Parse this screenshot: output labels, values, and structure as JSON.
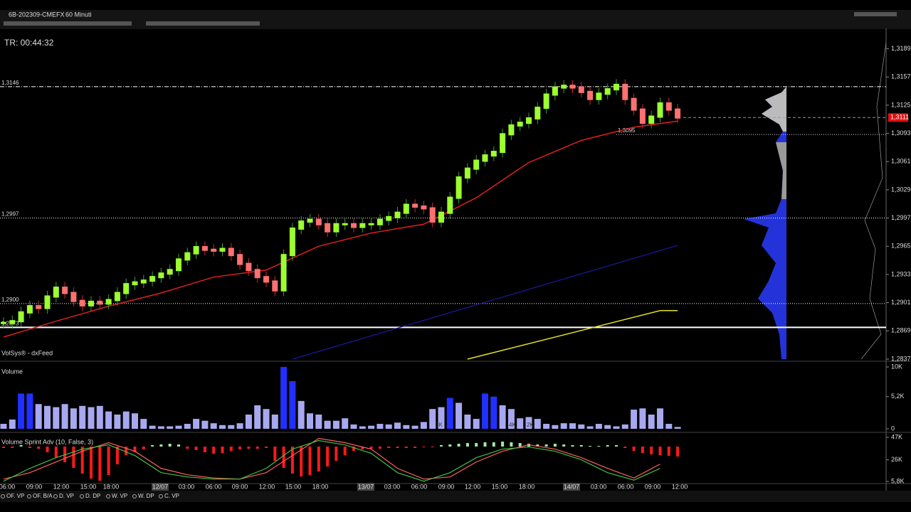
{
  "header": {
    "symbol": "6B-202309-CMEFX",
    "timeframe": "60 Minuti"
  },
  "price_panel": {
    "timer": "TR: 00:44:32",
    "source": "VolSys® - dxFeed",
    "ylim": [
      1.2837,
      1.3212
    ],
    "yticks": [
      {
        "value": 1.3189,
        "label": "1,3189"
      },
      {
        "value": 1.3157,
        "label": "1,3157"
      },
      {
        "value": 1.3125,
        "label": "1,3125"
      },
      {
        "value": 1.3093,
        "label": "1,3093"
      },
      {
        "value": 1.3061,
        "label": "1,3061"
      },
      {
        "value": 1.3029,
        "label": "1,3029"
      },
      {
        "value": 1.2997,
        "label": "1,2997"
      },
      {
        "value": 1.2965,
        "label": "1,2965"
      },
      {
        "value": 1.2933,
        "label": "1,2933"
      },
      {
        "value": 1.2901,
        "label": "1,2901"
      },
      {
        "value": 1.2869,
        "label": "1,2869"
      },
      {
        "value": 1.2837,
        "label": "1,2837"
      }
    ],
    "closes": [
      1.2878,
      1.288,
      1.289,
      1.2897,
      1.2895,
      1.2908,
      1.2918,
      1.2912,
      1.2903,
      1.2898,
      1.2902,
      1.29,
      1.2904,
      1.2912,
      1.2922,
      1.2924,
      1.2926,
      1.293,
      1.2934,
      1.2938,
      1.295,
      1.2957,
      1.2964,
      1.2961,
      1.296,
      1.2962,
      1.2955,
      1.2945,
      1.2938,
      1.293,
      1.2925,
      1.2915,
      1.2955,
      1.2985,
      1.2993,
      1.2995,
      1.299,
      1.2982,
      1.299,
      1.299,
      1.2987,
      1.299,
      1.299,
      1.2995,
      1.2998,
      1.3003,
      1.3012,
      1.301,
      1.3008,
      1.2993,
      1.3003,
      1.302,
      1.3043,
      1.3053,
      1.3062,
      1.3068,
      1.3072,
      1.3092,
      1.3102,
      1.3105,
      1.311,
      1.3122,
      1.3137,
      1.3145,
      1.3147,
      1.3145,
      1.314,
      1.3132,
      1.3138,
      1.3143,
      1.3148,
      1.3132,
      1.312,
      1.3105,
      1.3112,
      1.3127,
      1.312,
      1.3111
    ],
    "up_color": "#9cff2e",
    "down_color": "#ff7070",
    "ma": {
      "color": "#e02020",
      "x": [
        0,
        6,
        12,
        18,
        24,
        30,
        36,
        42,
        48,
        54,
        60,
        66,
        72,
        77
      ],
      "values": [
        1.2862,
        1.288,
        1.2897,
        1.2912,
        1.293,
        1.2938,
        1.2965,
        1.298,
        1.299,
        1.302,
        1.306,
        1.3085,
        1.31,
        1.3107
      ]
    },
    "blue_line": {
      "color": "#1a1aa0",
      "x": [
        33,
        77
      ],
      "values": [
        1.2837,
        1.2966
      ]
    },
    "yellow_line": {
      "color": "#e8e020",
      "x": [
        53,
        75,
        77
      ],
      "values": [
        1.2837,
        1.2892,
        1.2892
      ]
    },
    "levels": [
      {
        "value": 1.3146,
        "label": "1,3146",
        "style": "dashdot"
      },
      {
        "value": 1.2997,
        "label": "1,2997",
        "style": "dotted"
      },
      {
        "value": 1.29,
        "label": "1,2900",
        "style": "dotted"
      },
      {
        "value": 1.2873,
        "label": "1,2873",
        "style": "solid"
      }
    ],
    "low_level": {
      "value": 1.3095,
      "label": "1,3095"
    },
    "current": {
      "value": 1.3111,
      "label": "1,3111"
    }
  },
  "volume_panel": {
    "title": "Volume",
    "ylim": [
      0,
      10000
    ],
    "yticks": [
      {
        "value": 10000,
        "label": "10K"
      },
      {
        "value": 5200,
        "label": "5,2K"
      },
      0
    ],
    "values": [
      800,
      1500,
      5700,
      5700,
      4000,
      3700,
      3500,
      4000,
      3300,
      3700,
      3500,
      3700,
      2800,
      2300,
      2800,
      2500,
      1600,
      500,
      400,
      400,
      500,
      800,
      1600,
      1300,
      900,
      600,
      600,
      900,
      2300,
      3800,
      3200,
      2300,
      10000,
      7700,
      4500,
      2500,
      2300,
      1300,
      1300,
      1700,
      700,
      400,
      500,
      800,
      700,
      1000,
      600,
      500,
      1100,
      3200,
      3500,
      5000,
      4200,
      2300,
      1600,
      5700,
      5200,
      3800,
      3200,
      1700,
      1900,
      1600,
      800,
      600,
      900,
      900,
      700,
      400,
      800,
      600,
      400,
      700,
      3100,
      3300,
      2300,
      3300,
      800,
      300
    ],
    "annotations": [
      "3K",
      "4K",
      "2K"
    ]
  },
  "oscillator_panel": {
    "title": "Volume Sprint Adv (10, False, 3)",
    "ylim": [
      5800,
      47000
    ],
    "yticks": [
      {
        "value": 47000,
        "label": "47K"
      },
      {
        "value": 26000,
        "label": "26K"
      },
      {
        "value": 5800,
        "label": "5,8K"
      }
    ],
    "histogram": [
      -2,
      -2,
      2,
      -2,
      -3,
      -8,
      -15,
      -22,
      -30,
      -38,
      -45,
      -48,
      -40,
      -25,
      -12,
      -8,
      -4,
      2,
      3,
      4,
      3,
      -3,
      -5,
      -8,
      -10,
      -9,
      -6,
      -4,
      -3,
      -3,
      -2,
      -20,
      -30,
      -38,
      -42,
      -40,
      -35,
      -28,
      -20,
      -12,
      -6,
      -4,
      -3,
      -3,
      -2,
      -2,
      -2,
      -2,
      -1,
      -1,
      2,
      3,
      4,
      5,
      5,
      6,
      6,
      7,
      6,
      5,
      4,
      3,
      3,
      4,
      3,
      2,
      2,
      1,
      1,
      2,
      2,
      -2,
      -6,
      -9,
      -11,
      -12,
      -13,
      -14
    ],
    "x": [
      0,
      3,
      6,
      9,
      12,
      15,
      18,
      21,
      24,
      27,
      30,
      33,
      36,
      39,
      42,
      45,
      48,
      51,
      54,
      57,
      60,
      63,
      66,
      69,
      72,
      75
    ],
    "fast": [
      6000,
      18000,
      28000,
      36000,
      40000,
      30000,
      14000,
      10000,
      8000,
      8000,
      18000,
      36000,
      44000,
      40000,
      32000,
      14000,
      6000,
      14000,
      28000,
      36000,
      38000,
      34000,
      26000,
      14000,
      7000,
      18000
    ],
    "slow": [
      8000,
      14000,
      24000,
      34000,
      42000,
      34000,
      18000,
      12000,
      9000,
      8000,
      14000,
      30000,
      46000,
      42000,
      36000,
      18000,
      8000,
      10000,
      24000,
      34000,
      40000,
      36000,
      28000,
      18000,
      9000,
      22000
    ]
  },
  "time_axis": [
    "06:00",
    "09:00",
    "12:00",
    "15:00",
    "18:00",
    "12/07",
    "03:00",
    "06:00",
    "09:00",
    "12:00",
    "15:00",
    "18:00",
    "13/07",
    "03:00",
    "06:00",
    "09:00",
    "12:00",
    "15:00",
    "18:00",
    "14/07",
    "03:00",
    "06:00",
    "09:00",
    "12:00"
  ],
  "tabs": [
    "OF. VP",
    "OF. B/A",
    "D. VP",
    "D. DP",
    "W. VP",
    "W. DP",
    "C. VP"
  ]
}
